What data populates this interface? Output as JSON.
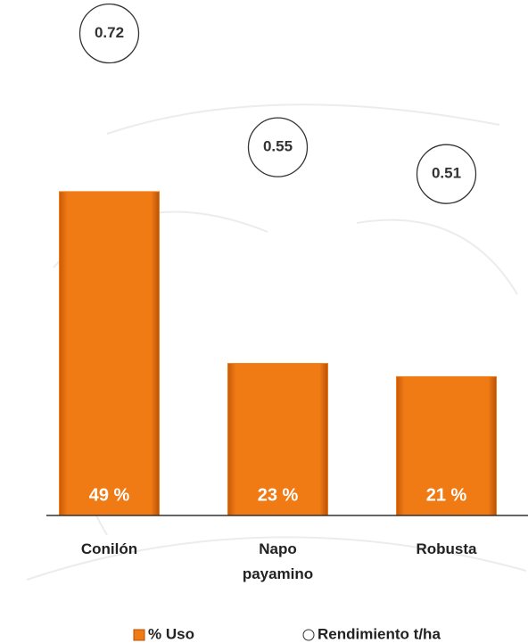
{
  "chart_data": {
    "type": "bar",
    "categories": [
      "Conilón",
      "Napo payamino",
      "Robusta"
    ],
    "series": [
      {
        "name": "% Uso",
        "color": "#f07a14",
        "values": [
          49,
          23,
          21
        ],
        "value_labels": [
          "49 %",
          "23 %",
          "21 %"
        ]
      },
      {
        "name": "Rendimiento t/ha",
        "color": "#ffffff",
        "values": [
          0.72,
          0.55,
          0.51
        ],
        "axis": "y2"
      }
    ],
    "ylim": [
      0,
      78
    ],
    "y2lim": [
      0,
      0.77
    ]
  }
}
